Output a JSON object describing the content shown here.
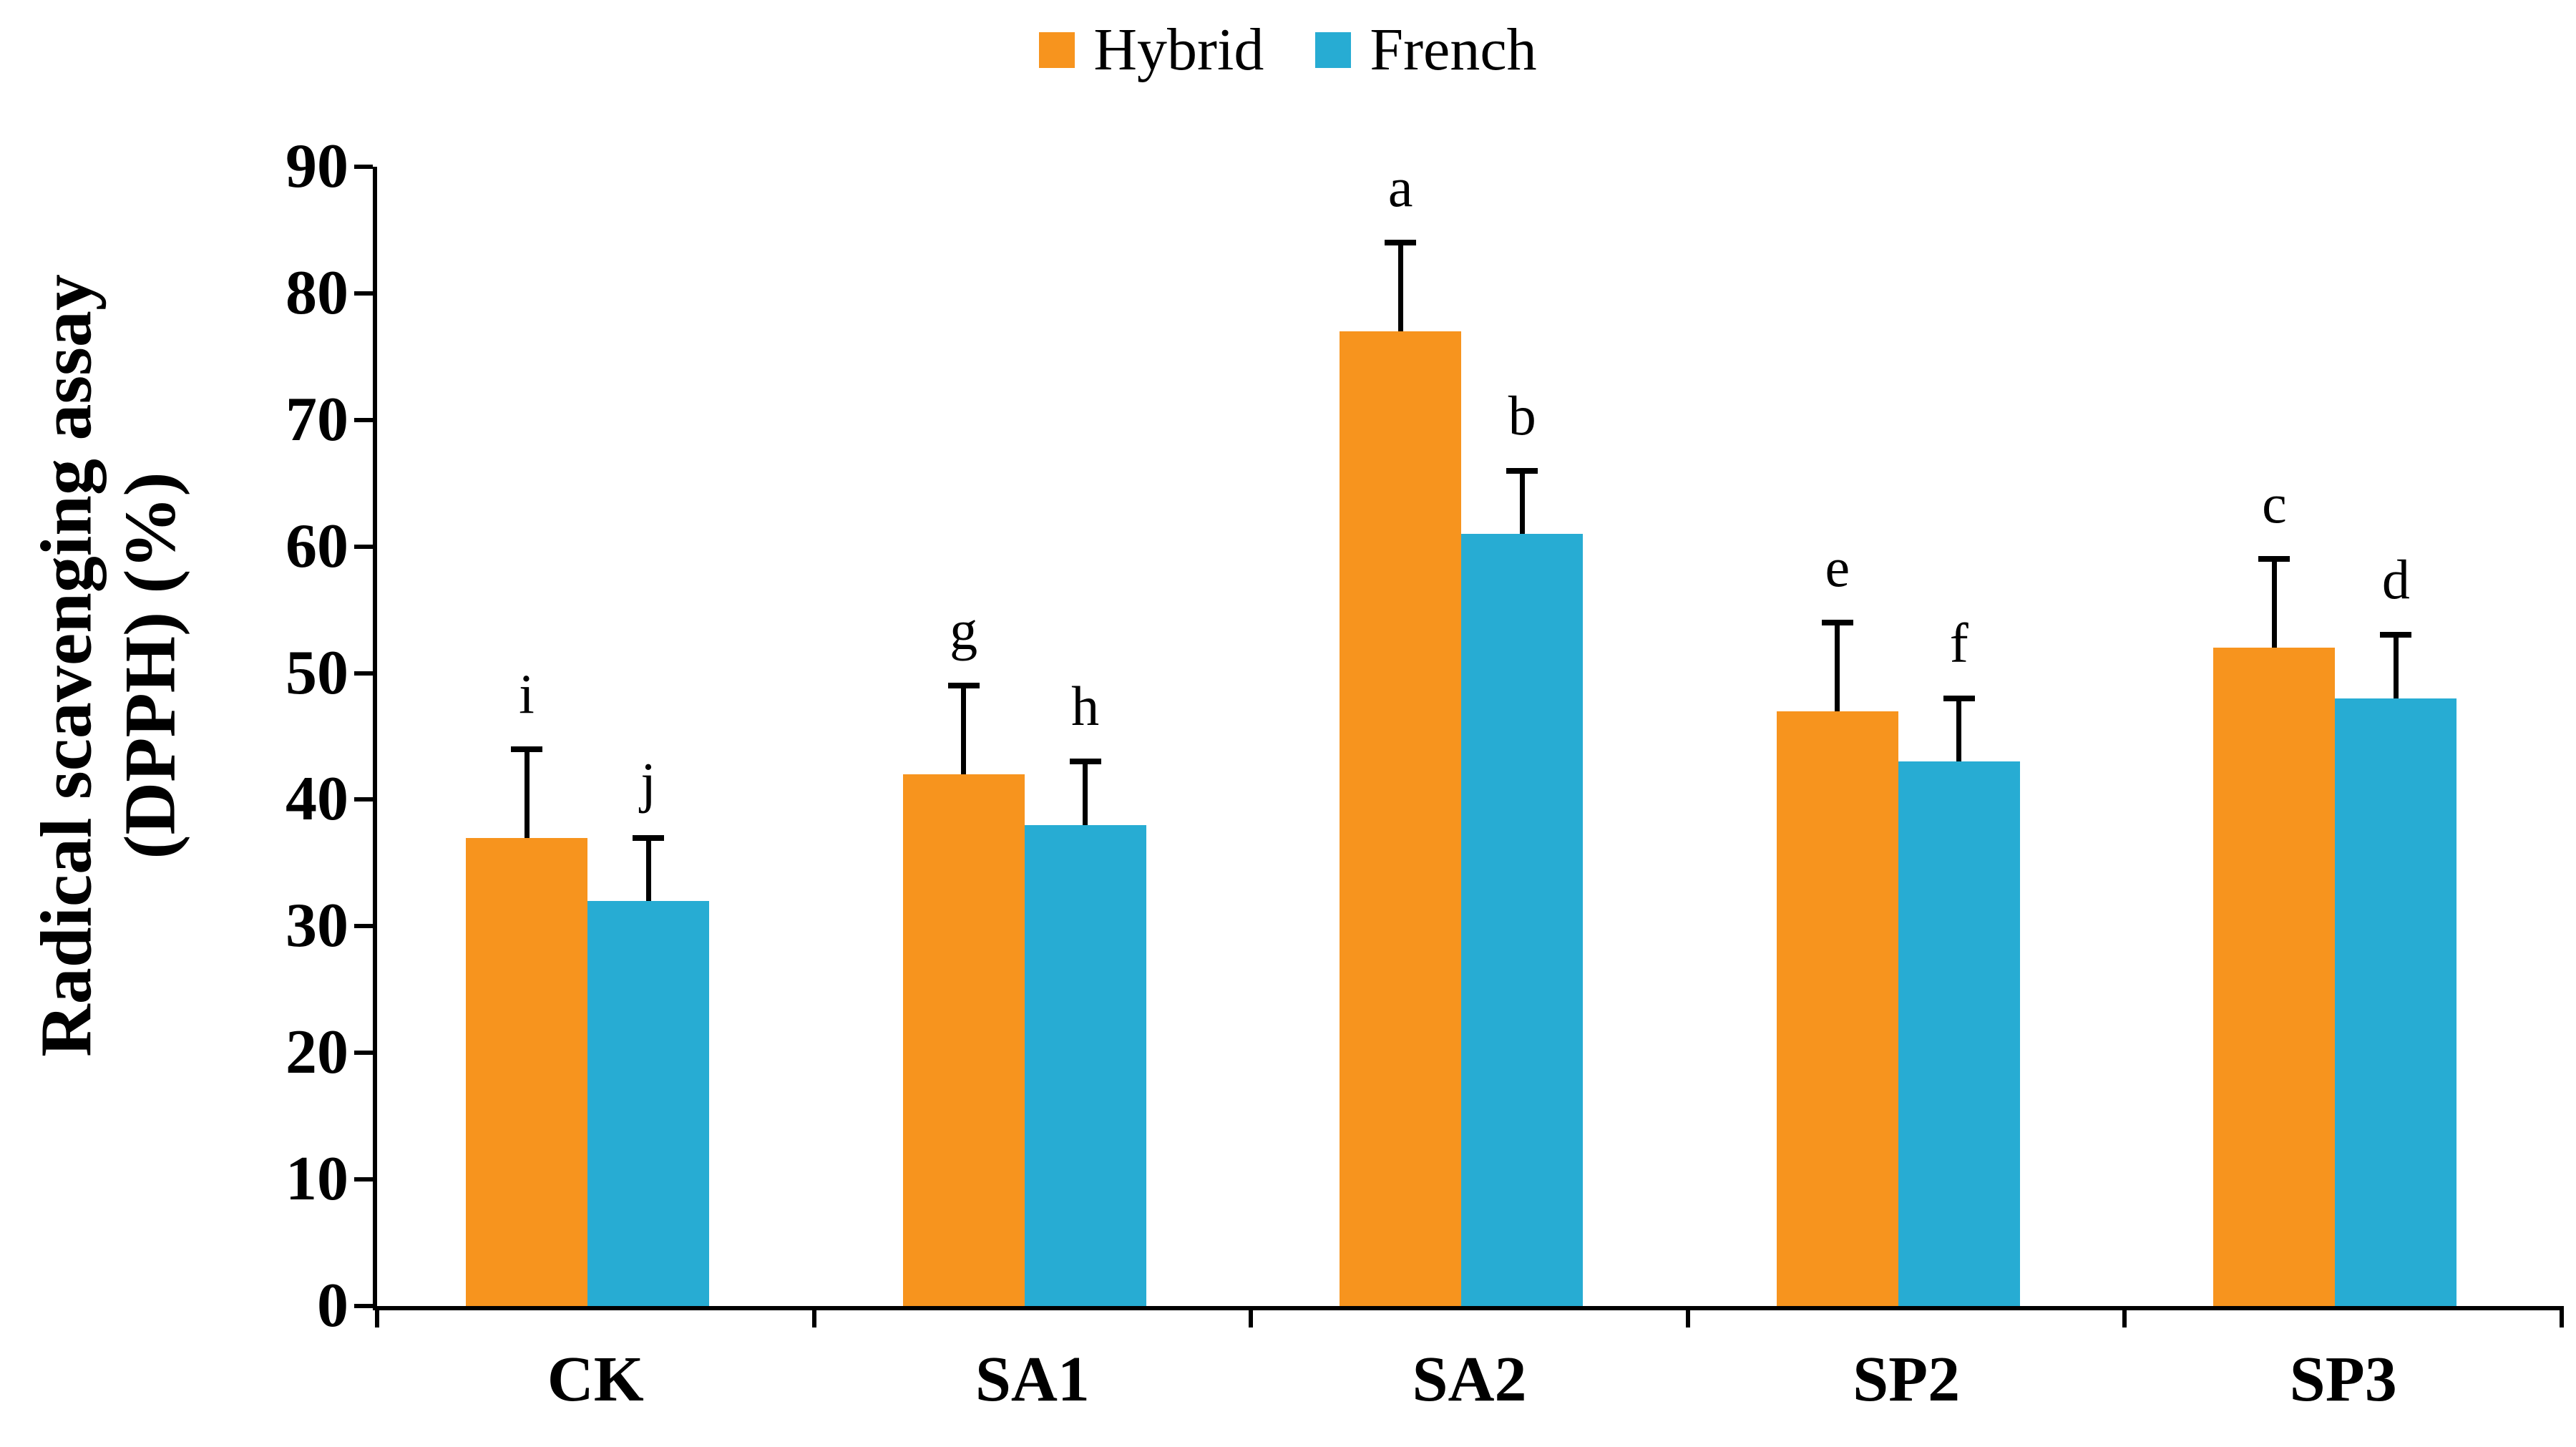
{
  "legend": {
    "items": [
      {
        "label": "Hybrid",
        "color": "#F7941E"
      },
      {
        "label": "French",
        "color": "#27ACD3"
      }
    ]
  },
  "y_axis": {
    "title_line1": "Radical scavenging assay",
    "title_line2": "(DPPH) (%)",
    "ticks": [
      0,
      10,
      20,
      30,
      40,
      50,
      60,
      70,
      80,
      90
    ]
  },
  "chart_data": {
    "type": "bar",
    "title": "",
    "xlabel": "",
    "ylabel": "Radical scavenging assay (DPPH) (%)",
    "categories": [
      "CK",
      "SA1",
      "SA2",
      "SP2",
      "SP3"
    ],
    "series": [
      {
        "name": "Hybrid",
        "color": "#F7941E",
        "values": [
          37,
          42,
          77,
          47,
          52
        ],
        "error_plus": [
          7,
          7,
          7,
          7,
          7
        ],
        "letters": [
          "i",
          "g",
          "a",
          "e",
          "c"
        ]
      },
      {
        "name": "French",
        "color": "#27ACD3",
        "values": [
          32,
          38,
          61,
          43,
          48
        ],
        "error_plus": [
          5,
          5,
          5,
          5,
          5
        ],
        "letters": [
          "j",
          "h",
          "b",
          "f",
          "d"
        ]
      }
    ],
    "ylim": [
      0,
      90
    ],
    "ytick_step": 10,
    "grid": false,
    "legend_position": "top-center",
    "error_bars": "upper-only"
  }
}
